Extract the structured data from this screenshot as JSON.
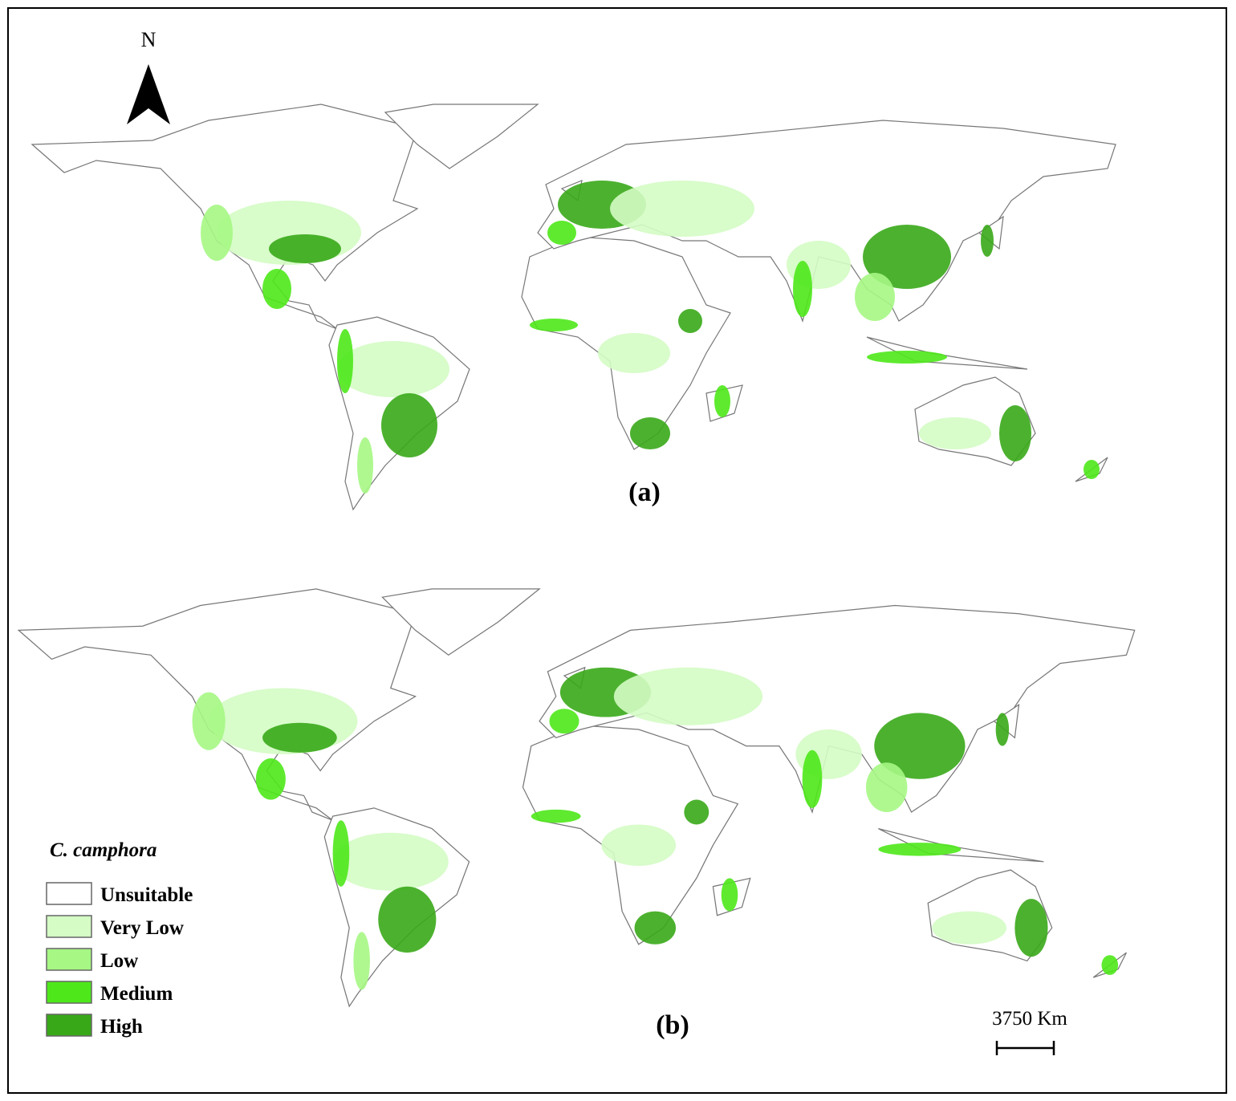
{
  "north_label": "N",
  "panels": [
    {
      "label": "(a)"
    },
    {
      "label": "(b)"
    }
  ],
  "legend": {
    "title": "C. camphora",
    "items": [
      {
        "label": "Unsuitable",
        "color": "#ffffff"
      },
      {
        "label": "Very Low",
        "color": "#d4fcc4"
      },
      {
        "label": "Low",
        "color": "#a6f784"
      },
      {
        "label": "Medium",
        "color": "#4ee81a"
      },
      {
        "label": "High",
        "color": "#38a818"
      }
    ]
  },
  "scale_bar": {
    "label": "3750 Km"
  }
}
